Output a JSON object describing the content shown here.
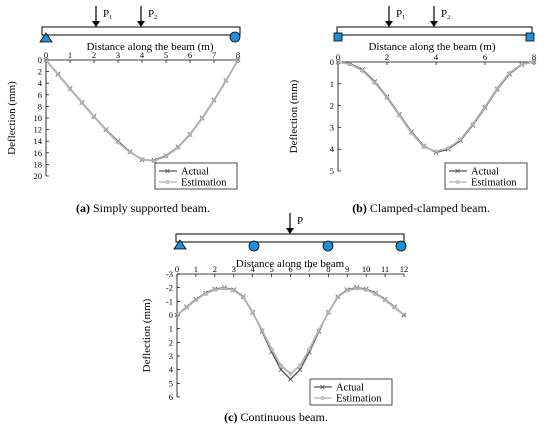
{
  "colors": {
    "actual": "#555555",
    "estimation": "#b4b4b4",
    "support": "#1f8fd6",
    "beam": "#000000"
  },
  "chart_data": [
    {
      "type": "line",
      "id": "a",
      "caption_tag": "(a)",
      "caption_text": " Simply supported beam.",
      "beam_label": "Distance along the beam (m)",
      "loads": [
        {
          "x": 2,
          "label": "P",
          "sub": "1"
        },
        {
          "x": 3.9,
          "label": "P",
          "sub": "2"
        }
      ],
      "supports": [
        {
          "x": 0,
          "kind": "triangle-icon"
        },
        {
          "x": 8,
          "kind": "circle-icon"
        }
      ],
      "ylabel": "Deflection (mm)",
      "xlim": [
        0,
        8
      ],
      "ylim": [
        0,
        20
      ],
      "y_inverted": true,
      "xticks": [
        "0",
        "1",
        "2",
        "3",
        "4",
        "5",
        "6",
        "7",
        "8"
      ],
      "yticks": [
        "0",
        "2",
        "4",
        "6",
        "8",
        "10",
        "12",
        "14",
        "16",
        "18",
        "20"
      ],
      "series": [
        {
          "name": "Actual",
          "marker": "x",
          "x": [
            0,
            0.5,
            1,
            1.5,
            2,
            2.5,
            3,
            3.5,
            4,
            4.5,
            5,
            5.5,
            6,
            6.5,
            7,
            7.5,
            8
          ],
          "y": [
            0,
            2.4,
            4.9,
            7.3,
            9.7,
            12,
            14,
            15.8,
            17.2,
            17.3,
            16.5,
            15,
            12.8,
            10,
            6.9,
            3.5,
            0
          ]
        },
        {
          "name": "Estimation",
          "marker": "o",
          "x": [
            0,
            0.5,
            1,
            1.5,
            2,
            2.5,
            3,
            3.5,
            4,
            4.5,
            5,
            5.5,
            6,
            6.5,
            7,
            7.5,
            8
          ],
          "y": [
            0,
            2.5,
            5,
            7.4,
            9.8,
            12.1,
            14.2,
            15.9,
            17.1,
            17.4,
            16.6,
            15.1,
            12.9,
            10.1,
            7,
            3.6,
            0
          ]
        }
      ],
      "legend": "bottom-right",
      "grid": false
    },
    {
      "type": "line",
      "id": "b",
      "caption_tag": "(b)",
      "caption_text": " Clamped-clamped beam.",
      "beam_label": "Distance along the beam (m)",
      "loads": [
        {
          "x": 2,
          "label": "P",
          "sub": "1"
        },
        {
          "x": 3.9,
          "label": "P",
          "sub": "2"
        }
      ],
      "supports": [
        {
          "x": 0,
          "kind": "square-icon"
        },
        {
          "x": 8,
          "kind": "square-icon"
        }
      ],
      "ylabel": "Deflection (mm)",
      "xlim": [
        0,
        8
      ],
      "ylim": [
        0,
        5
      ],
      "y_inverted": true,
      "xticks": [
        "0",
        "2",
        "4",
        "6",
        "8"
      ],
      "yticks": [
        "0",
        "1",
        "2",
        "3",
        "4",
        "5"
      ],
      "series": [
        {
          "name": "Actual",
          "marker": "x",
          "x": [
            0,
            0.5,
            1,
            1.5,
            2,
            2.5,
            3,
            3.5,
            4,
            4.5,
            5,
            5.5,
            6,
            6.5,
            7,
            7.5,
            8
          ],
          "y": [
            0,
            0.08,
            0.35,
            0.9,
            1.6,
            2.4,
            3.2,
            3.85,
            4.15,
            4.0,
            3.6,
            2.9,
            2.1,
            1.25,
            0.55,
            0.12,
            0
          ]
        },
        {
          "name": "Estimation",
          "marker": "o",
          "x": [
            0,
            0.5,
            1,
            1.5,
            2,
            2.5,
            3,
            3.5,
            4,
            4.5,
            5,
            5.5,
            6,
            6.5,
            7,
            7.5,
            8
          ],
          "y": [
            0,
            0.1,
            0.4,
            0.95,
            1.65,
            2.45,
            3.25,
            3.9,
            4.1,
            3.95,
            3.55,
            2.85,
            2.05,
            1.2,
            0.5,
            0.1,
            0
          ]
        }
      ],
      "legend": "bottom-right",
      "grid": false
    },
    {
      "type": "line",
      "id": "c",
      "caption_tag": "(c)",
      "caption_text": " Continuous beam.",
      "beam_label": "Distance along the beam",
      "loads": [
        {
          "x": 6,
          "label": "P",
          "sub": ""
        }
      ],
      "supports": [
        {
          "x": 0,
          "kind": "triangle-icon"
        },
        {
          "x": 4,
          "kind": "circle-icon"
        },
        {
          "x": 8,
          "kind": "circle-icon"
        },
        {
          "x": 12,
          "kind": "circle-icon"
        }
      ],
      "ylabel": "Deflection (mm)",
      "xlim": [
        0,
        12
      ],
      "ylim": [
        -3,
        6
      ],
      "y_inverted": true,
      "xticks": [
        "0",
        "1",
        "2",
        "3",
        "4",
        "5",
        "6",
        "7",
        "8",
        "9",
        "10",
        "11",
        "12"
      ],
      "yticks": [
        "-3",
        "-2",
        "-1",
        "0",
        "1",
        "2",
        "3",
        "4",
        "5",
        "6"
      ],
      "series": [
        {
          "name": "Actual",
          "marker": "x",
          "x": [
            0,
            0.5,
            1,
            1.5,
            2,
            2.5,
            3,
            3.5,
            4,
            4.5,
            5,
            5.5,
            6,
            6.5,
            7,
            7.5,
            8,
            8.5,
            9,
            9.5,
            10,
            10.5,
            11,
            11.5,
            12
          ],
          "y": [
            0,
            -0.6,
            -1.15,
            -1.6,
            -1.9,
            -2.0,
            -1.85,
            -1.35,
            -0.2,
            1.2,
            2.7,
            4.0,
            4.7,
            4.0,
            2.7,
            1.2,
            -0.2,
            -1.35,
            -1.85,
            -2.0,
            -1.9,
            -1.6,
            -1.15,
            -0.6,
            0
          ]
        },
        {
          "name": "Estimation",
          "marker": "o",
          "x": [
            0,
            0.5,
            1,
            1.5,
            2,
            2.5,
            3,
            3.5,
            4,
            4.5,
            5,
            5.5,
            6,
            6.5,
            7,
            7.5,
            8,
            8.5,
            9,
            9.5,
            10,
            10.5,
            11,
            11.5,
            12
          ],
          "y": [
            0,
            -0.55,
            -1.1,
            -1.55,
            -1.85,
            -1.95,
            -1.8,
            -1.3,
            -0.15,
            1.1,
            2.5,
            3.7,
            4.3,
            3.7,
            2.5,
            1.1,
            -0.15,
            -1.3,
            -1.8,
            -1.95,
            -1.85,
            -1.55,
            -1.1,
            -0.55,
            0
          ]
        }
      ],
      "legend": "bottom-right",
      "grid": false
    }
  ]
}
